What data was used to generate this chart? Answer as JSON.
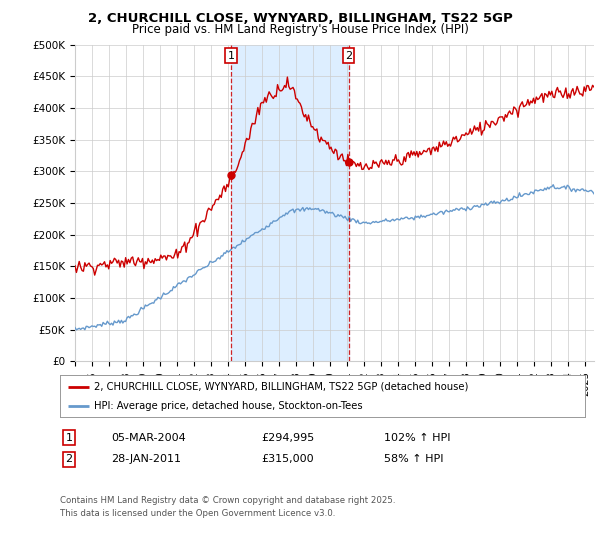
{
  "title1": "2, CHURCHILL CLOSE, WYNYARD, BILLINGHAM, TS22 5GP",
  "title2": "Price paid vs. HM Land Registry's House Price Index (HPI)",
  "ylim": [
    0,
    500000
  ],
  "xlim_start": 1995.0,
  "xlim_end": 2025.5,
  "purchase1": {
    "date_num": 2004.17,
    "price": 294995,
    "label": "1"
  },
  "purchase2": {
    "date_num": 2011.08,
    "price": 315000,
    "label": "2"
  },
  "legend_line1": "2, CHURCHILL CLOSE, WYNYARD, BILLINGHAM, TS22 5GP (detached house)",
  "legend_line2": "HPI: Average price, detached house, Stockton-on-Tees",
  "table_row1": [
    "1",
    "05-MAR-2004",
    "£294,995",
    "102% ↑ HPI"
  ],
  "table_row2": [
    "2",
    "28-JAN-2011",
    "£315,000",
    "58% ↑ HPI"
  ],
  "footer": "Contains HM Land Registry data © Crown copyright and database right 2025.\nThis data is licensed under the Open Government Licence v3.0.",
  "line_red_color": "#cc0000",
  "line_blue_color": "#6699cc",
  "shaded_color": "#ddeeff",
  "grid_color": "#cccccc",
  "bg_color": "#ffffff"
}
